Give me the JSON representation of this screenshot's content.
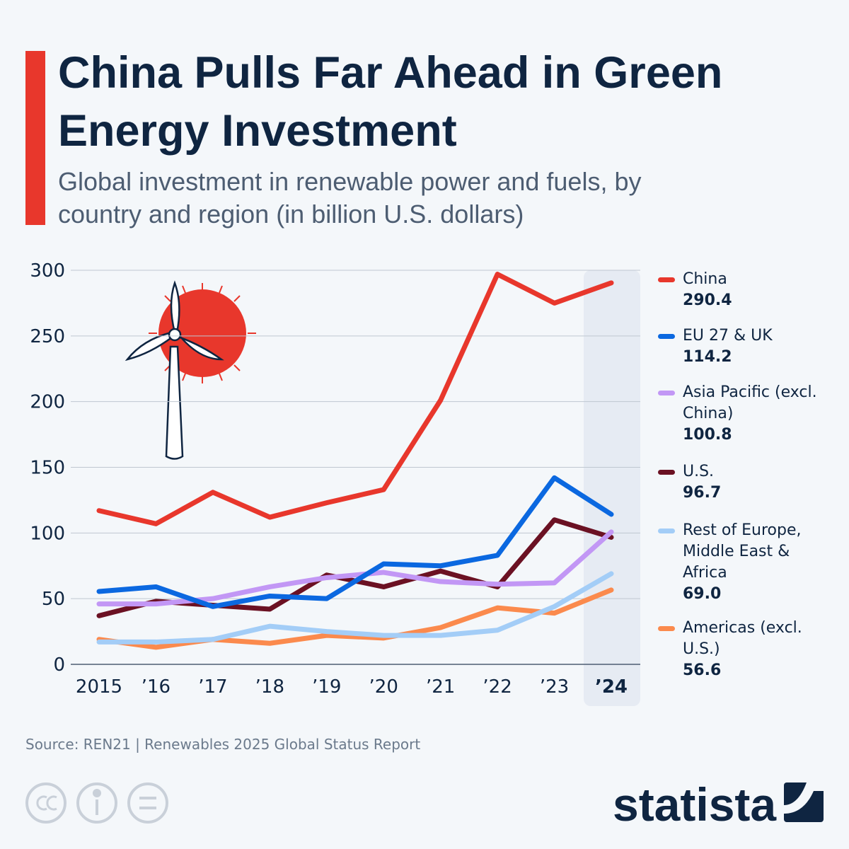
{
  "chart_data": {
    "type": "line",
    "title": "China Pulls Far Ahead in Green Energy Investment",
    "subtitle": "Global investment in renewable power and fuels, by country and region (in billion U.S. dollars)",
    "source": "Source: REN21 | Renewables 2025 Global Status Report",
    "brand": "statista",
    "categories": [
      "2015",
      "’16",
      "’17",
      "’18",
      "’19",
      "’20",
      "’21",
      "’22",
      "’23",
      "’24"
    ],
    "ylim": [
      0,
      300
    ],
    "yticks": [
      0,
      50,
      100,
      150,
      200,
      250,
      300
    ],
    "grid": true,
    "legend": "right",
    "series": [
      {
        "name": "China",
        "color": "#e8372c",
        "values": [
          117,
          107,
          131,
          112,
          123,
          133,
          201,
          297,
          275,
          290.4
        ],
        "value_labels": [
          null,
          null,
          null,
          null,
          null,
          null,
          null,
          null,
          null,
          "290.4"
        ]
      },
      {
        "name": "EU 27 & UK",
        "color": "#0b68e0",
        "values": [
          55.5,
          59,
          44,
          52,
          50,
          76.5,
          75,
          83,
          142,
          114.2
        ],
        "value_labels": [
          null,
          null,
          null,
          null,
          null,
          null,
          null,
          null,
          null,
          "114.2"
        ]
      },
      {
        "name": "Asia Pacific (excl. China)",
        "color": "#c297f5",
        "values": [
          46,
          46,
          50,
          59,
          66,
          70,
          63,
          61,
          62,
          100.8
        ],
        "value_labels": [
          null,
          null,
          null,
          null,
          null,
          null,
          null,
          null,
          null,
          "100.8"
        ]
      },
      {
        "name": "U.S.",
        "color": "#6b1123",
        "values": [
          37,
          48,
          45,
          42,
          68,
          59,
          71,
          59,
          110,
          96.7
        ],
        "value_labels": [
          null,
          null,
          null,
          null,
          null,
          null,
          null,
          null,
          null,
          "96.7"
        ]
      },
      {
        "name": "Rest of Europe, Middle East & Africa",
        "color": "#a3cdf7",
        "values": [
          17,
          17,
          19,
          29,
          25,
          22,
          22,
          26,
          44,
          69.0
        ],
        "value_labels": [
          null,
          null,
          null,
          null,
          null,
          null,
          null,
          null,
          null,
          "69.0"
        ]
      },
      {
        "name": "Americas (excl. U.S.)",
        "color": "#fb8a4d",
        "values": [
          19,
          13,
          19,
          16,
          22,
          20,
          28,
          43,
          39,
          56.6
        ],
        "value_labels": [
          null,
          null,
          null,
          null,
          null,
          null,
          null,
          null,
          null,
          "56.6"
        ]
      }
    ]
  }
}
